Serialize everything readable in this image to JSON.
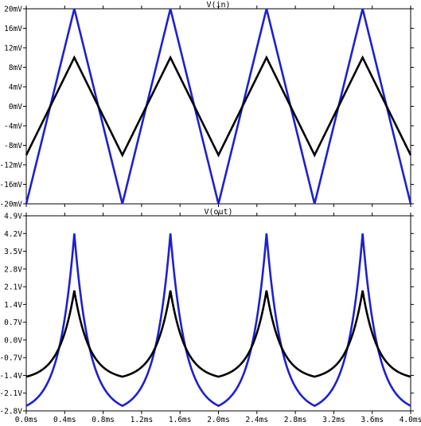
{
  "chart_data": [
    {
      "type": "line",
      "title": "V(in)",
      "xlim": [
        0,
        4
      ],
      "ylim": [
        -20,
        20
      ],
      "x_ticks": [
        "0.0ms",
        "0.4ms",
        "0.8ms",
        "1.2ms",
        "1.6ms",
        "2.0ms",
        "2.4ms",
        "2.8ms",
        "3.2ms",
        "3.6ms",
        "4.0ms"
      ],
      "y_ticks": [
        "20mV",
        "16mV",
        "12mV",
        "8mV",
        "4mV",
        "0mV",
        "-4mV",
        "-8mV",
        "-12mV",
        "-16mV",
        "-20mV"
      ],
      "grid": false,
      "series": [
        {
          "color": "#1f1fd0",
          "shape": "triangle",
          "period_ms": 1.0,
          "peak": 20,
          "trough": -20,
          "first_peak_ms": 0.5
        },
        {
          "color": "#000000",
          "shape": "triangle",
          "period_ms": 1.0,
          "peak": 10,
          "trough": -10,
          "first_peak_ms": 0.5
        }
      ]
    },
    {
      "type": "line",
      "title": "V(out)",
      "xlim": [
        0,
        4
      ],
      "ylim": [
        -2.8,
        4.9
      ],
      "x_ticks": [
        "0.0ms",
        "0.4ms",
        "0.8ms",
        "1.2ms",
        "1.6ms",
        "2.0ms",
        "2.4ms",
        "2.8ms",
        "3.2ms",
        "3.6ms",
        "4.0ms"
      ],
      "y_ticks": [
        "4.9V",
        "4.2V",
        "3.5V",
        "2.8V",
        "2.1V",
        "1.4V",
        "0.7V",
        "0.0V",
        "-0.7V",
        "-1.4V",
        "-2.1V",
        "-2.8V"
      ],
      "grid": false,
      "series": [
        {
          "color": "#1f1fd0",
          "shape": "exponential",
          "period_ms": 1.0,
          "peak": 4.2,
          "trough": -2.6,
          "first_peak_ms": 0.5
        },
        {
          "color": "#000000",
          "shape": "exponential",
          "period_ms": 1.0,
          "peak": 1.95,
          "trough": -1.45,
          "first_peak_ms": 0.5
        }
      ]
    }
  ]
}
